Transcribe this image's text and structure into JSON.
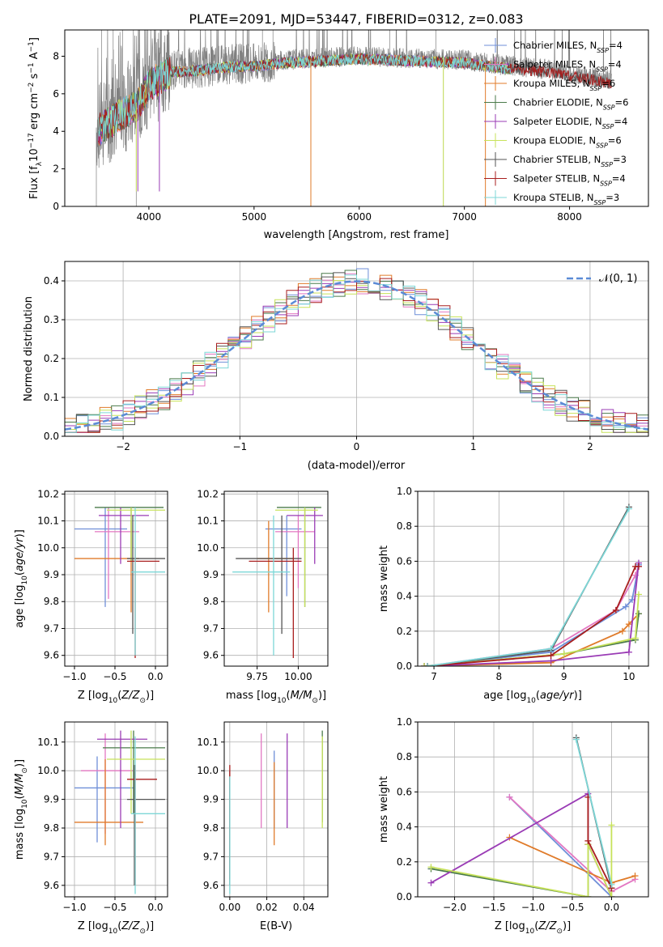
{
  "figure_title": "PLATE=2091, MJD=53447, FIBERID=0312, z=0.083",
  "colors": {
    "chabrier_miles": "#6f8fd8",
    "salpeter_miles": "#e377c2",
    "kroupa_miles": "#e07b2a",
    "chabrier_elodie": "#4a7a4a",
    "salpeter_elodie": "#9a3bb5",
    "kroupa_elodie": "#c7e25a",
    "chabrier_stelib": "#555555",
    "salpeter_stelib": "#a81e1e",
    "kroupa_stelib": "#7dd7d7",
    "data": "#808080",
    "normal_curve": "#5b8bd6"
  },
  "chart_data": [
    {
      "type": "line",
      "panel": "spectrum",
      "xlabel": "wavelength [Angstrom, rest frame]",
      "ylabel_parts": [
        "Flux [f",
        "λ",
        "10",
        "−17",
        " erg cm",
        "−2",
        " s",
        "−1",
        " A",
        "−1",
        "]"
      ],
      "xlim": [
        3200,
        8750
      ],
      "ylim": [
        0,
        9.4
      ],
      "xticks": [
        4000,
        5000,
        6000,
        7000,
        8000
      ],
      "yticks": [
        0,
        2,
        4,
        6,
        8
      ],
      "legend_placement": "top-right",
      "legend": [
        {
          "name": "Chabrier MILES",
          "nssp": "4",
          "color_key": "chabrier_miles"
        },
        {
          "name": "Salpeter MILES",
          "nssp": "4",
          "color_key": "salpeter_miles"
        },
        {
          "name": "Kroupa MILES",
          "nssp": "6",
          "color_key": "kroupa_miles"
        },
        {
          "name": "Chabrier ELODIE",
          "nssp": "6",
          "color_key": "chabrier_elodie"
        },
        {
          "name": "Salpeter ELODIE",
          "nssp": "4",
          "color_key": "salpeter_elodie"
        },
        {
          "name": "Kroupa ELODIE",
          "nssp": "6",
          "color_key": "kroupa_elodie"
        },
        {
          "name": "Chabrier STELIB",
          "nssp": "3",
          "color_key": "chabrier_stelib"
        },
        {
          "name": "Salpeter STELIB",
          "nssp": "4",
          "color_key": "salpeter_stelib"
        },
        {
          "name": "Kroupa STELIB",
          "nssp": "3",
          "color_key": "kroupa_stelib"
        }
      ],
      "continuum_x": [
        3520,
        3700,
        3900,
        4000,
        4200,
        4500,
        4800,
        5000,
        5300,
        5600,
        6000,
        6500,
        7000,
        7400,
        7800,
        8200,
        8400
      ],
      "continuum_y": [
        4.2,
        4.9,
        5.6,
        6.6,
        7.3,
        7.4,
        7.6,
        7.6,
        7.8,
        7.9,
        8.0,
        7.9,
        7.8,
        7.5,
        7.3,
        6.9,
        6.7
      ],
      "model_x_range": [
        3520,
        7450
      ],
      "data_x_range": [
        3500,
        8400
      ],
      "spikes_to_zero": [
        3500,
        3880,
        5540,
        6800
      ],
      "spikes_up": [
        3550,
        3660,
        3750,
        3960,
        4120,
        5080,
        5180,
        6290,
        6730
      ]
    },
    {
      "type": "line",
      "panel": "residual_histogram",
      "xlabel": "(data-model)/error",
      "ylabel": "Normed distribution",
      "xlim": [
        -2.5,
        2.5
      ],
      "ylim": [
        0,
        0.45
      ],
      "xticks": [
        -2,
        -1,
        0,
        1,
        2
      ],
      "yticks": [
        0.0,
        0.1,
        0.2,
        0.3,
        0.4
      ],
      "legend_placement": "top-right",
      "normal_label": "𝒩(0, 1)",
      "bin_width": 0.1
    },
    {
      "type": "scatter",
      "panel": "age_vs_Z",
      "xlabel": "Z [log10(Z/Z☉)]",
      "ylabel": "age  [log10(age/yr)]",
      "xlim": [
        -1.12,
        0.15
      ],
      "ylim": [
        9.56,
        10.21
      ],
      "xticks": [
        -1.0,
        -0.5,
        0.0
      ],
      "yticks": [
        9.6,
        9.7,
        9.8,
        9.9,
        10.0,
        10.1,
        10.2
      ],
      "points": [
        {
          "c": "chabrier_miles",
          "x": -0.62,
          "xe": [
            -1.0,
            -0.35
          ],
          "y": 10.07,
          "ye": [
            9.78,
            10.15
          ]
        },
        {
          "c": "salpeter_miles",
          "x": -0.58,
          "xe": [
            -0.75,
            -0.2
          ],
          "y": 10.06,
          "ye": [
            9.81,
            10.15
          ]
        },
        {
          "c": "kroupa_miles",
          "x": -0.3,
          "xe": [
            -1.0,
            -0.2
          ],
          "y": 9.96,
          "ye": [
            9.76,
            10.1
          ]
        },
        {
          "c": "chabrier_elodie",
          "x": -0.3,
          "xe": [
            -0.75,
            0.1
          ],
          "y": 10.15,
          "ye": [
            9.95,
            10.15
          ]
        },
        {
          "c": "salpeter_elodie",
          "x": -0.43,
          "xe": [
            -0.7,
            -0.08
          ],
          "y": 10.12,
          "ye": [
            9.94,
            10.15
          ]
        },
        {
          "c": "kroupa_elodie",
          "x": -0.3,
          "xe": [
            -0.6,
            0.12
          ],
          "y": 10.14,
          "ye": [
            9.95,
            10.15
          ]
        },
        {
          "c": "chabrier_stelib",
          "x": -0.28,
          "xe": [
            -0.35,
            0.12
          ],
          "y": 9.96,
          "ye": [
            9.68,
            10.12
          ]
        },
        {
          "c": "salpeter_stelib",
          "x": -0.25,
          "xe": [
            -0.35,
            0.05
          ],
          "y": 9.95,
          "ye": [
            9.59,
            10.0
          ]
        },
        {
          "c": "kroupa_stelib",
          "x": -0.25,
          "xe": [
            -0.3,
            0.12
          ],
          "y": 9.91,
          "ye": [
            9.6,
            10.15
          ]
        }
      ]
    },
    {
      "type": "scatter",
      "panel": "age_vs_mass",
      "xlabel": "mass [log10(M/M☉)]",
      "ylabel": "",
      "xlim": [
        9.55,
        10.18
      ],
      "ylim": [
        9.56,
        10.21
      ],
      "xticks": [
        9.75,
        10.0
      ],
      "yticks": [
        9.6,
        9.7,
        9.8,
        9.9,
        10.0,
        10.1,
        10.2
      ],
      "points": [
        {
          "c": "chabrier_miles",
          "x": 9.93,
          "xe": [
            9.8,
            10.02
          ],
          "y": 10.07,
          "ye": [
            9.82,
            10.12
          ]
        },
        {
          "c": "salpeter_miles",
          "x": 10.0,
          "xe": [
            9.86,
            10.1
          ],
          "y": 10.06,
          "ye": [
            9.85,
            10.12
          ]
        },
        {
          "c": "kroupa_miles",
          "x": 9.82,
          "xe": [
            9.75,
            9.97
          ],
          "y": 9.96,
          "ye": [
            9.76,
            10.1
          ]
        },
        {
          "c": "chabrier_elodie",
          "x": 10.04,
          "xe": [
            9.87,
            10.14
          ],
          "y": 10.15,
          "ye": [
            9.78,
            10.15
          ]
        },
        {
          "c": "salpeter_elodie",
          "x": 10.1,
          "xe": [
            9.93,
            10.15
          ],
          "y": 10.12,
          "ye": [
            9.94,
            10.15
          ]
        },
        {
          "c": "kroupa_elodie",
          "x": 10.04,
          "xe": [
            9.86,
            10.12
          ],
          "y": 10.14,
          "ye": [
            9.78,
            10.15
          ]
        },
        {
          "c": "chabrier_stelib",
          "x": 9.9,
          "xe": [
            9.62,
            10.02
          ],
          "y": 9.96,
          "ye": [
            9.68,
            10.12
          ]
        },
        {
          "c": "salpeter_stelib",
          "x": 9.97,
          "xe": [
            9.7,
            10.02
          ],
          "y": 9.95,
          "ye": [
            9.59,
            10.0
          ]
        },
        {
          "c": "kroupa_stelib",
          "x": 9.85,
          "xe": [
            9.6,
            9.95
          ],
          "y": 9.91,
          "ye": [
            9.6,
            10.12
          ]
        }
      ]
    },
    {
      "type": "line",
      "panel": "mass_weight_vs_age",
      "xlabel": "age  [log10(age/yr)]",
      "ylabel": "mass weight",
      "xlim": [
        6.75,
        10.3
      ],
      "ylim": [
        0,
        1.0
      ],
      "xticks": [
        7,
        8,
        9,
        10
      ],
      "yticks": [
        0.0,
        0.2,
        0.4,
        0.6,
        0.8,
        1.0
      ],
      "series": [
        {
          "c": "chabrier_miles",
          "x": [
            6.9,
            8.8,
            9.95,
            10.05,
            10.15
          ],
          "y": [
            0.0,
            0.08,
            0.34,
            0.38,
            0.58
          ]
        },
        {
          "c": "salpeter_miles",
          "x": [
            6.9,
            8.8,
            9.8,
            10.1,
            10.15
          ],
          "y": [
            0.0,
            0.1,
            0.32,
            0.52,
            0.57
          ]
        },
        {
          "c": "kroupa_miles",
          "x": [
            6.85,
            8.8,
            9.9,
            10.0,
            10.15
          ],
          "y": [
            0.0,
            0.02,
            0.2,
            0.24,
            0.3
          ]
        },
        {
          "c": "chabrier_elodie",
          "x": [
            6.85,
            9.0,
            10.1,
            10.15
          ],
          "y": [
            0.0,
            0.07,
            0.15,
            0.3
          ]
        },
        {
          "c": "salpeter_elodie",
          "x": [
            6.85,
            8.8,
            10.0,
            10.15
          ],
          "y": [
            0.0,
            0.03,
            0.08,
            0.59
          ]
        },
        {
          "c": "kroupa_elodie",
          "x": [
            6.85,
            9.0,
            10.1,
            10.15
          ],
          "y": [
            0.0,
            0.07,
            0.16,
            0.41
          ]
        },
        {
          "c": "chabrier_stelib",
          "x": [
            6.9,
            8.8,
            10.0
          ],
          "y": [
            0.0,
            0.09,
            0.91
          ]
        },
        {
          "c": "salpeter_stelib",
          "x": [
            6.9,
            8.8,
            9.8,
            10.1,
            10.15
          ],
          "y": [
            0.0,
            0.06,
            0.32,
            0.57,
            0.57
          ]
        },
        {
          "c": "kroupa_stelib",
          "x": [
            6.9,
            8.8,
            10.0
          ],
          "y": [
            0.0,
            0.1,
            0.9
          ]
        }
      ]
    },
    {
      "type": "scatter",
      "panel": "mass_vs_Z",
      "xlabel": "Z [log10(Z/Z☉)]",
      "ylabel": "mass [log10(M/M☉)]",
      "xlim": [
        -1.12,
        0.15
      ],
      "ylim": [
        9.56,
        10.17
      ],
      "xticks": [
        -1.0,
        -0.5,
        0.0
      ],
      "yticks": [
        9.6,
        9.7,
        9.8,
        9.9,
        10.0,
        10.1
      ],
      "points": [
        {
          "c": "chabrier_miles",
          "x": -0.72,
          "xe": [
            -1.0,
            -0.25
          ],
          "y": 9.94,
          "ye": [
            9.75,
            10.05
          ]
        },
        {
          "c": "salpeter_miles",
          "x": -0.62,
          "xe": [
            -0.92,
            -0.28
          ],
          "y": 10.0,
          "ye": [
            9.78,
            10.13
          ]
        },
        {
          "c": "kroupa_miles",
          "x": -0.62,
          "xe": [
            -1.0,
            -0.15
          ],
          "y": 9.82,
          "ye": [
            9.74,
            10.04
          ]
        },
        {
          "c": "chabrier_elodie",
          "x": -0.27,
          "xe": [
            -0.65,
            0.12
          ],
          "y": 10.08,
          "ye": [
            9.85,
            10.14
          ]
        },
        {
          "c": "salpeter_elodie",
          "x": -0.43,
          "xe": [
            -0.72,
            -0.1
          ],
          "y": 10.11,
          "ye": [
            9.8,
            10.14
          ]
        },
        {
          "c": "kroupa_elodie",
          "x": -0.3,
          "xe": [
            -0.6,
            0.12
          ],
          "y": 10.04,
          "ye": [
            9.85,
            10.14
          ]
        },
        {
          "c": "chabrier_stelib",
          "x": -0.26,
          "xe": [
            -0.35,
            0.12
          ],
          "y": 9.9,
          "ye": [
            9.6,
            10.02
          ]
        },
        {
          "c": "salpeter_stelib",
          "x": -0.25,
          "xe": [
            -0.35,
            0.02
          ],
          "y": 9.97,
          "ye": [
            9.6,
            10.02
          ]
        },
        {
          "c": "kroupa_stelib",
          "x": -0.25,
          "xe": [
            -0.3,
            0.12
          ],
          "y": 9.85,
          "ye": [
            9.57,
            10.12
          ]
        }
      ]
    },
    {
      "type": "scatter",
      "panel": "mass_vs_ebv",
      "xlabel": "E(B-V)",
      "ylabel": "",
      "xlim": [
        -0.003,
        0.053
      ],
      "ylim": [
        9.56,
        10.17
      ],
      "xticks": [
        0.0,
        0.02,
        0.04
      ],
      "yticks": [
        9.6,
        9.7,
        9.8,
        9.9,
        10.0,
        10.1
      ],
      "points": [
        {
          "c": "chabrier_miles",
          "x": 0.024,
          "ye": [
            9.8,
            10.07
          ]
        },
        {
          "c": "salpeter_miles",
          "x": 0.017,
          "ye": [
            9.8,
            10.13
          ]
        },
        {
          "c": "kroupa_miles",
          "x": 0.024,
          "ye": [
            9.74,
            10.03
          ]
        },
        {
          "c": "chabrier_elodie",
          "x": 0.05,
          "ye": [
            9.82,
            10.14
          ]
        },
        {
          "c": "salpeter_elodie",
          "x": 0.031,
          "ye": [
            9.8,
            10.13
          ]
        },
        {
          "c": "kroupa_elodie",
          "x": 0.05,
          "ye": [
            9.8,
            10.12
          ]
        },
        {
          "c": "chabrier_stelib",
          "x": 0.0,
          "ye": [
            9.6,
            10.0
          ]
        },
        {
          "c": "salpeter_stelib",
          "x": 0.0,
          "ye": [
            9.62,
            10.02
          ]
        },
        {
          "c": "kroupa_stelib",
          "x": 0.0,
          "ye": [
            9.57,
            9.98
          ]
        }
      ]
    },
    {
      "type": "line",
      "panel": "mass_weight_vs_Z",
      "xlabel": "Z [log10(Z/Z☉)]",
      "ylabel": "mass weight",
      "xlim": [
        -2.47,
        0.47
      ],
      "ylim": [
        0,
        1.0
      ],
      "xticks": [
        -2.0,
        -1.5,
        -1.0,
        -0.5,
        0.0
      ],
      "yticks": [
        0.0,
        0.2,
        0.4,
        0.6,
        0.8,
        1.0
      ],
      "series": [
        {
          "c": "chabrier_miles",
          "x": [
            -1.3,
            0.0
          ],
          "y": [
            0.57,
            0.0
          ]
        },
        {
          "c": "salpeter_miles",
          "x": [
            -1.3,
            0.0,
            0.3
          ],
          "y": [
            0.57,
            0.03,
            0.1
          ]
        },
        {
          "c": "kroupa_miles",
          "x": [
            -1.3,
            0.0,
            0.3
          ],
          "y": [
            0.34,
            0.08,
            0.12
          ]
        },
        {
          "c": "chabrier_elodie",
          "x": [
            -2.3,
            -0.3,
            -0.3
          ],
          "y": [
            0.16,
            0.0,
            0.3
          ]
        },
        {
          "c": "salpeter_elodie",
          "x": [
            -2.3,
            -0.3,
            -0.3,
            0.0
          ],
          "y": [
            0.08,
            0.59,
            0.3,
            0.0
          ]
        },
        {
          "c": "kroupa_elodie",
          "x": [
            -2.3,
            -0.3,
            -0.3,
            0.0,
            0.0
          ],
          "y": [
            0.17,
            0.0,
            0.3,
            0.0,
            0.41
          ]
        },
        {
          "c": "chabrier_stelib",
          "x": [
            -0.45,
            0.0
          ],
          "y": [
            0.91,
            0.05
          ]
        },
        {
          "c": "salpeter_stelib",
          "x": [
            -0.3,
            -0.3,
            0.0
          ],
          "y": [
            0.57,
            0.32,
            0.05
          ]
        },
        {
          "c": "kroupa_stelib",
          "x": [
            -0.45,
            0.0
          ],
          "y": [
            0.9,
            0.07
          ]
        }
      ]
    }
  ]
}
